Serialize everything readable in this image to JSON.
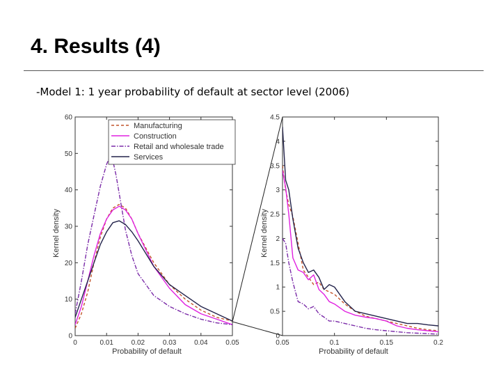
{
  "slide": {
    "title": "4. Results (4)",
    "subtitle": "-Model 1: 1 year probability of default at sector level (2006)"
  },
  "colors": {
    "manufacturing": "#c2542a",
    "construction": "#e020e0",
    "retail": "#7a2aa8",
    "services": "#22224a",
    "axis": "#333333",
    "connector": "#222222"
  },
  "chart_data": [
    {
      "type": "line",
      "panel": "left",
      "xlabel": "Probability of default",
      "ylabel": "Kernel density",
      "xlim": [
        0,
        0.05
      ],
      "ylim": [
        0,
        60
      ],
      "xticks": [
        0,
        0.01,
        0.02,
        0.03,
        0.04,
        0.05
      ],
      "xtick_labels": [
        "0",
        "0.01",
        "0.02",
        "0.03",
        "0.04",
        "0.05"
      ],
      "yticks": [
        0,
        10,
        20,
        30,
        40,
        50,
        60
      ],
      "ytick_labels": [
        "0",
        "10",
        "20",
        "30",
        "40",
        "50",
        "60"
      ],
      "grid": false,
      "legend": {
        "position": "top-left",
        "entries": [
          "Manufacturing",
          "Construction",
          "Retail and wholesale trade",
          "Services"
        ]
      },
      "series": [
        {
          "name": "Manufacturing",
          "color_key": "manufacturing",
          "dash": "4,3",
          "x": [
            0,
            0.002,
            0.004,
            0.006,
            0.008,
            0.01,
            0.012,
            0.014,
            0.016,
            0.018,
            0.02,
            0.025,
            0.03,
            0.035,
            0.04,
            0.045,
            0.05
          ],
          "y": [
            2,
            6,
            12,
            20,
            27,
            32,
            35,
            36,
            35,
            32,
            28,
            20,
            14,
            10,
            7,
            5,
            4
          ]
        },
        {
          "name": "Construction",
          "color_key": "construction",
          "dash": "",
          "x": [
            0,
            0.002,
            0.004,
            0.006,
            0.008,
            0.01,
            0.012,
            0.014,
            0.016,
            0.018,
            0.02,
            0.025,
            0.03,
            0.035,
            0.04,
            0.045,
            0.05
          ],
          "y": [
            3,
            8,
            15,
            22,
            28,
            32,
            34.5,
            35.5,
            34.5,
            32,
            28,
            19,
            13,
            8.5,
            6,
            4.5,
            3
          ]
        },
        {
          "name": "Retail and wholesale trade",
          "color_key": "retail",
          "dash": "6,2,1.5,2",
          "x": [
            0,
            0.002,
            0.004,
            0.006,
            0.008,
            0.01,
            0.011,
            0.012,
            0.013,
            0.014,
            0.015,
            0.016,
            0.018,
            0.02,
            0.025,
            0.03,
            0.035,
            0.04,
            0.045,
            0.05
          ],
          "y": [
            6,
            15,
            25,
            33,
            41,
            47,
            49,
            48,
            44,
            39,
            34,
            29,
            22,
            17,
            11,
            8,
            6,
            4.5,
            3.5,
            3
          ]
        },
        {
          "name": "Services",
          "color_key": "services",
          "dash": "",
          "x": [
            0,
            0.002,
            0.004,
            0.006,
            0.008,
            0.01,
            0.012,
            0.014,
            0.016,
            0.018,
            0.02,
            0.025,
            0.03,
            0.035,
            0.04,
            0.045,
            0.05
          ],
          "y": [
            5,
            10,
            15,
            20,
            25,
            28.5,
            31,
            31.5,
            30.5,
            28.5,
            26,
            19,
            14,
            11,
            8,
            6,
            4
          ]
        }
      ]
    },
    {
      "type": "line",
      "panel": "right",
      "xlabel": "Probability of default",
      "ylabel": "Kernel density",
      "xlim": [
        0.05,
        0.2
      ],
      "ylim": [
        0,
        4.5
      ],
      "xticks": [
        0.05,
        0.1,
        0.15,
        0.2
      ],
      "xtick_labels": [
        "0.05",
        "0.1",
        "0.15",
        "0.2"
      ],
      "yticks": [
        0,
        0.5,
        1,
        1.5,
        2,
        2.5,
        3,
        3.5,
        4,
        4.5
      ],
      "ytick_labels": [
        "0",
        "0.5",
        "1",
        "1.5",
        "2",
        "2.5",
        "3",
        "3.5",
        "4",
        "4.5"
      ],
      "grid": false,
      "series": [
        {
          "name": "Manufacturing",
          "color_key": "manufacturing",
          "dash": "4,3",
          "x": [
            0.05,
            0.053,
            0.056,
            0.06,
            0.065,
            0.07,
            0.075,
            0.08,
            0.085,
            0.09,
            0.095,
            0.1,
            0.11,
            0.12,
            0.13,
            0.14,
            0.15,
            0.16,
            0.17,
            0.18,
            0.19,
            0.2
          ],
          "y": [
            3.5,
            3.0,
            2.7,
            2.45,
            1.9,
            1.35,
            1.2,
            1.05,
            1.1,
            0.95,
            0.9,
            0.85,
            0.65,
            0.5,
            0.4,
            0.35,
            0.3,
            0.25,
            0.2,
            0.15,
            0.12,
            0.1
          ]
        },
        {
          "name": "Construction",
          "color_key": "construction",
          "dash": "",
          "x": [
            0.05,
            0.053,
            0.056,
            0.06,
            0.065,
            0.07,
            0.075,
            0.08,
            0.085,
            0.09,
            0.095,
            0.1,
            0.11,
            0.12,
            0.13,
            0.14,
            0.15,
            0.16,
            0.17,
            0.18,
            0.19,
            0.2
          ],
          "y": [
            3.4,
            3.05,
            2.5,
            1.6,
            1.35,
            1.3,
            1.15,
            1.25,
            0.95,
            0.85,
            0.7,
            0.65,
            0.5,
            0.42,
            0.38,
            0.35,
            0.3,
            0.2,
            0.15,
            0.12,
            0.1,
            0.08
          ]
        },
        {
          "name": "Retail and wholesale trade",
          "color_key": "retail",
          "dash": "6,2,1.5,2",
          "x": [
            0.05,
            0.053,
            0.056,
            0.06,
            0.065,
            0.07,
            0.075,
            0.08,
            0.085,
            0.09,
            0.095,
            0.1,
            0.11,
            0.12,
            0.13,
            0.14,
            0.15,
            0.16,
            0.17,
            0.18,
            0.19,
            0.2
          ],
          "y": [
            2.0,
            1.9,
            1.5,
            1.1,
            0.7,
            0.65,
            0.55,
            0.6,
            0.45,
            0.38,
            0.3,
            0.3,
            0.25,
            0.2,
            0.15,
            0.12,
            0.1,
            0.08,
            0.06,
            0.05,
            0.04,
            0.03
          ]
        },
        {
          "name": "Services",
          "color_key": "services",
          "dash": "",
          "x": [
            0.05,
            0.053,
            0.056,
            0.06,
            0.065,
            0.07,
            0.075,
            0.08,
            0.085,
            0.09,
            0.095,
            0.1,
            0.11,
            0.12,
            0.13,
            0.14,
            0.15,
            0.16,
            0.17,
            0.18,
            0.19,
            0.2
          ],
          "y": [
            4.3,
            3.2,
            3.0,
            2.4,
            1.8,
            1.5,
            1.3,
            1.35,
            1.2,
            0.95,
            1.05,
            1.0,
            0.7,
            0.5,
            0.45,
            0.4,
            0.35,
            0.3,
            0.25,
            0.25,
            0.22,
            0.2
          ]
        }
      ]
    }
  ]
}
